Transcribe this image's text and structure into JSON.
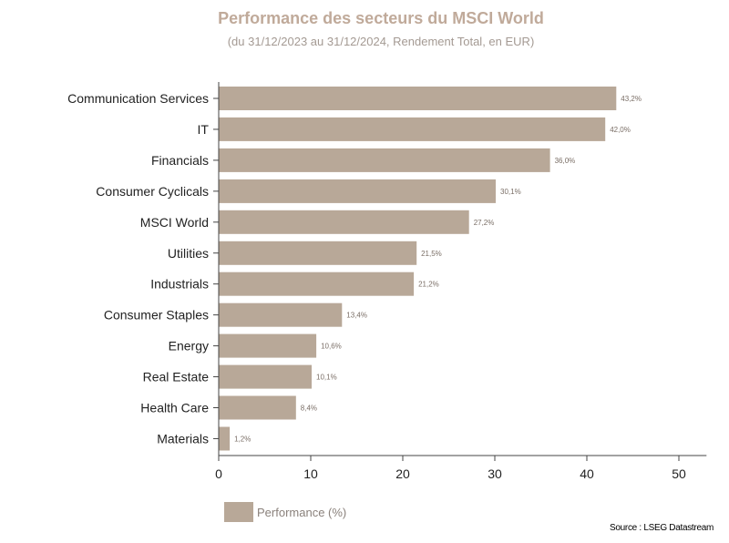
{
  "chart_data": {
    "type": "bar",
    "orientation": "horizontal",
    "title": "Performance des secteurs du MSCI World",
    "subtitle": "(du 31/12/2023 au 31/12/2024, Rendement Total, en EUR)",
    "categories": [
      "Communication Services",
      "IT",
      "Financials",
      "Consumer Cyclicals",
      "MSCI World",
      "Utilities",
      "Industrials",
      "Consumer Staples",
      "Energy",
      "Real Estate",
      "Health Care",
      "Materials"
    ],
    "series": [
      {
        "name": "Performance (%)",
        "values": [
          43.2,
          42.0,
          36.0,
          30.1,
          27.2,
          21.5,
          21.2,
          13.4,
          10.6,
          10.1,
          8.4,
          1.2
        ],
        "labels": [
          "43,2%",
          "42,0%",
          "36,0%",
          "30,1%",
          "27,2%",
          "21,5%",
          "21,2%",
          "13,4%",
          "10,6%",
          "10,1%",
          "8,4%",
          "1,2%"
        ]
      }
    ],
    "xlim": [
      0,
      53
    ],
    "xticks": [
      0,
      10,
      20,
      30,
      40,
      50
    ],
    "grid": false,
    "legend_position": "bottom-left",
    "colors": {
      "bar": "#b8a898",
      "title": "#c0aa9a",
      "axis": "#444444"
    }
  },
  "source": "Source : LSEG Datastream"
}
